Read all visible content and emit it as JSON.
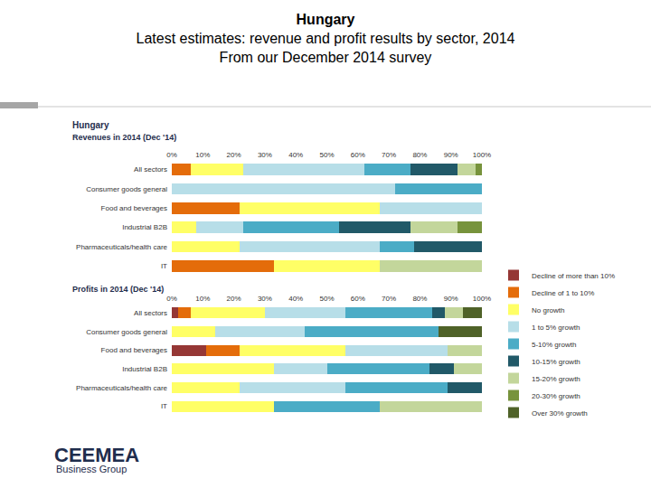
{
  "slide": {
    "title": [
      "Hungary",
      "Latest estimates: revenue and profit results by sector, 2014",
      "From our December 2014 survey"
    ],
    "panel_heading": "Hungary",
    "logo": {
      "text": "CEEMEA",
      "tagline": "Business Group"
    }
  },
  "chart_data": [
    {
      "type": "bar",
      "title": "Revenues in 2014 (Dec '14)",
      "orientation": "horizontal",
      "stacked": true,
      "grid": false,
      "legend": "right",
      "categories": [
        "All sectors",
        "Consumer goods general",
        "Food and beverages",
        "Industrial B2B",
        "Pharmaceuticals/health care",
        "IT"
      ],
      "xlim": [
        0,
        100
      ],
      "xticks": [
        {
          "value": 0,
          "label": "0%"
        },
        {
          "value": 10,
          "label": "10%"
        },
        {
          "value": 20,
          "label": "20%"
        },
        {
          "value": 30,
          "label": "30%"
        },
        {
          "value": 40,
          "label": "40%"
        },
        {
          "value": 50,
          "label": "50%"
        },
        {
          "value": 60,
          "label": "60%"
        },
        {
          "value": 70,
          "label": "70%"
        },
        {
          "value": 80,
          "label": "80%"
        },
        {
          "value": 90,
          "label": "90%"
        },
        {
          "value": 100,
          "label": "100%"
        }
      ],
      "series": [
        {
          "name": "Decline of more than 10%",
          "color": "#953735",
          "values": [
            0,
            0,
            0,
            0,
            0,
            0
          ]
        },
        {
          "name": "Decline of 1 to 10%",
          "color": "#e46c0a",
          "values": [
            6,
            0,
            22,
            0,
            0,
            33
          ]
        },
        {
          "name": "No growth",
          "color": "#ffff66",
          "values": [
            17,
            0,
            45,
            8,
            22,
            34
          ]
        },
        {
          "name": "1 to 5% growth",
          "color": "#b7dee8",
          "values": [
            39,
            72,
            33,
            15,
            45,
            0
          ]
        },
        {
          "name": "5-10% growth",
          "color": "#4bacc6",
          "values": [
            15,
            28,
            0,
            31,
            11,
            0
          ]
        },
        {
          "name": "10-15% growth",
          "color": "#215968",
          "values": [
            15,
            0,
            0,
            23,
            22,
            0
          ]
        },
        {
          "name": "15-20% growth",
          "color": "#c3d69b",
          "values": [
            6,
            0,
            0,
            15,
            0,
            33
          ]
        },
        {
          "name": "20-30% growth",
          "color": "#77933c",
          "values": [
            2,
            0,
            0,
            8,
            0,
            0
          ]
        },
        {
          "name": "Over 30% growth",
          "color": "#4f6228",
          "values": [
            0,
            0,
            0,
            0,
            0,
            0
          ]
        }
      ]
    },
    {
      "type": "bar",
      "title": "Profits in 2014 (Dec '14)",
      "orientation": "horizontal",
      "stacked": true,
      "grid": false,
      "categories": [
        "All sectors",
        "Consumer goods general",
        "Food and beverages",
        "Industrial B2B",
        "Pharmaceuticals/health care",
        "IT"
      ],
      "xlim": [
        0,
        100
      ],
      "xticks": [
        {
          "value": 0,
          "label": "0%"
        },
        {
          "value": 10,
          "label": "10%"
        },
        {
          "value": 20,
          "label": "20%"
        },
        {
          "value": 30,
          "label": "30%"
        },
        {
          "value": 40,
          "label": "40%"
        },
        {
          "value": 50,
          "label": "50%"
        },
        {
          "value": 60,
          "label": "60%"
        },
        {
          "value": 70,
          "label": "70%"
        },
        {
          "value": 80,
          "label": "80%"
        },
        {
          "value": 90,
          "label": "90%"
        },
        {
          "value": 100,
          "label": "100%"
        }
      ],
      "series": [
        {
          "name": "Decline of more than 10%",
          "color": "#953735",
          "values": [
            2,
            0,
            11,
            0,
            0,
            0
          ]
        },
        {
          "name": "Decline of 1 to 10%",
          "color": "#e46c0a",
          "values": [
            4,
            0,
            11,
            0,
            0,
            0
          ]
        },
        {
          "name": "No growth",
          "color": "#ffff66",
          "values": [
            24,
            14,
            34,
            33,
            22,
            33
          ]
        },
        {
          "name": "1 to 5% growth",
          "color": "#b7dee8",
          "values": [
            26,
            29,
            33,
            17,
            34,
            0
          ]
        },
        {
          "name": "5-10% growth",
          "color": "#4bacc6",
          "values": [
            28,
            43,
            0,
            33,
            33,
            34
          ]
        },
        {
          "name": "10-15% growth",
          "color": "#215968",
          "values": [
            4,
            0,
            0,
            8,
            11,
            0
          ]
        },
        {
          "name": "15-20% growth",
          "color": "#c3d69b",
          "values": [
            6,
            0,
            11,
            9,
            0,
            33
          ]
        },
        {
          "name": "20-30% growth",
          "color": "#77933c",
          "values": [
            0,
            0,
            0,
            0,
            0,
            0
          ]
        },
        {
          "name": "Over 30% growth",
          "color": "#4f6228",
          "values": [
            6,
            14,
            0,
            0,
            0,
            0
          ]
        }
      ]
    }
  ]
}
